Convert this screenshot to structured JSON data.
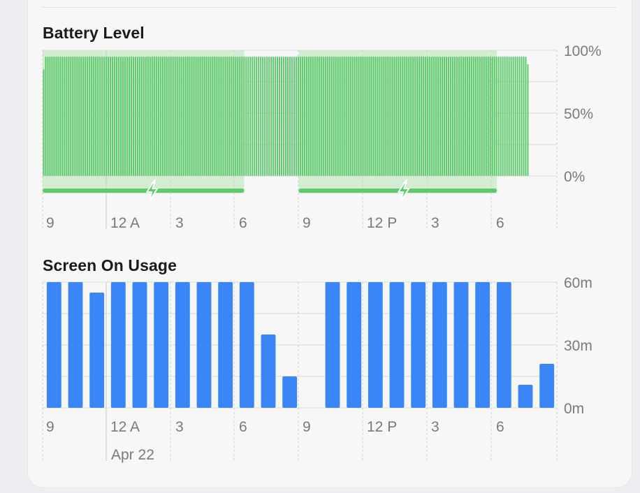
{
  "battery": {
    "title": "Battery Level",
    "charging_icon": "lightning-bolt-icon"
  },
  "usage": {
    "title": "Screen On Usage",
    "date_label": "Apr 22"
  },
  "colors": {
    "battery_fill": "#5fc96e",
    "charging_band": "#d3edd3",
    "charging_bar": "#5fc96e",
    "usage_fill": "#3b86f6",
    "grid": "#d8d8d8",
    "axis_text": "#7a7a7a"
  },
  "chart_data": [
    {
      "type": "bar",
      "name": "battery-level",
      "title": "Battery Level",
      "y_ticks": [
        "100%",
        "50%",
        "0%"
      ],
      "ylim": [
        0,
        100
      ],
      "x_ticks": [
        "9",
        "12 A",
        "3",
        "6",
        "9",
        "12 P",
        "3",
        "6"
      ],
      "values": [
        85,
        95,
        95,
        95,
        95,
        95,
        95,
        95,
        95,
        95,
        95,
        95,
        95,
        95,
        95,
        95,
        95,
        95,
        95,
        95,
        95,
        95,
        95,
        95,
        95,
        95,
        95,
        95,
        95,
        95,
        95,
        95,
        95,
        95,
        95,
        95,
        95,
        95,
        95,
        95,
        95,
        95,
        95,
        95,
        95,
        95,
        95,
        95,
        95,
        95,
        95,
        95,
        95,
        95,
        95,
        95,
        95,
        95,
        95,
        95,
        95,
        95,
        95,
        95,
        95,
        95,
        95,
        95,
        95,
        95,
        95,
        95,
        95,
        95,
        95,
        95,
        95,
        95,
        95,
        95,
        95,
        95,
        95,
        95,
        95,
        95,
        95,
        95,
        95,
        95,
        95,
        95,
        95,
        95,
        95,
        95,
        95,
        95,
        95,
        95,
        95,
        95,
        95,
        95,
        95,
        95,
        95,
        95,
        95,
        95,
        95,
        95,
        95,
        95,
        95,
        95,
        95,
        95,
        95,
        95,
        95,
        95,
        95,
        95,
        95,
        95,
        95,
        95,
        95,
        95,
        95,
        95,
        95,
        95,
        95,
        95,
        95,
        95,
        95,
        95,
        95,
        95,
        95,
        95,
        95,
        95,
        95,
        95,
        95,
        95,
        95,
        95,
        95,
        95,
        95,
        95,
        95,
        95,
        95,
        95,
        95,
        95,
        95,
        95,
        95,
        95,
        95,
        95,
        95,
        95,
        95,
        95,
        95,
        95,
        95,
        95,
        95,
        95,
        95,
        95,
        95,
        95,
        95,
        95,
        95,
        95,
        95,
        95,
        95,
        95,
        95,
        95,
        95,
        95,
        95,
        95,
        95,
        95,
        95,
        95,
        95,
        95,
        95,
        95,
        95,
        95,
        95,
        95,
        95,
        95,
        95,
        95,
        95,
        95,
        95,
        95,
        95,
        95,
        95,
        95,
        95,
        95,
        95,
        95,
        95,
        95,
        95,
        95,
        95,
        95,
        95,
        95,
        89
      ],
      "charging_periods": [
        [
          0,
          31.5
        ],
        [
          40,
          71
        ]
      ],
      "charging_x_max": 76
    },
    {
      "type": "bar",
      "name": "screen-on-usage",
      "title": "Screen On Usage",
      "y_ticks": [
        "60m",
        "30m",
        "0m"
      ],
      "ylim": [
        0,
        60
      ],
      "x_ticks": [
        "9",
        "12 A",
        "3",
        "6",
        "9",
        "12 P",
        "3",
        "6"
      ],
      "values": [
        60,
        60,
        55,
        60,
        60,
        60,
        60,
        60,
        60,
        60,
        35,
        15,
        0,
        60,
        60,
        60,
        60,
        60,
        60,
        60,
        60,
        60,
        11,
        21
      ]
    }
  ]
}
